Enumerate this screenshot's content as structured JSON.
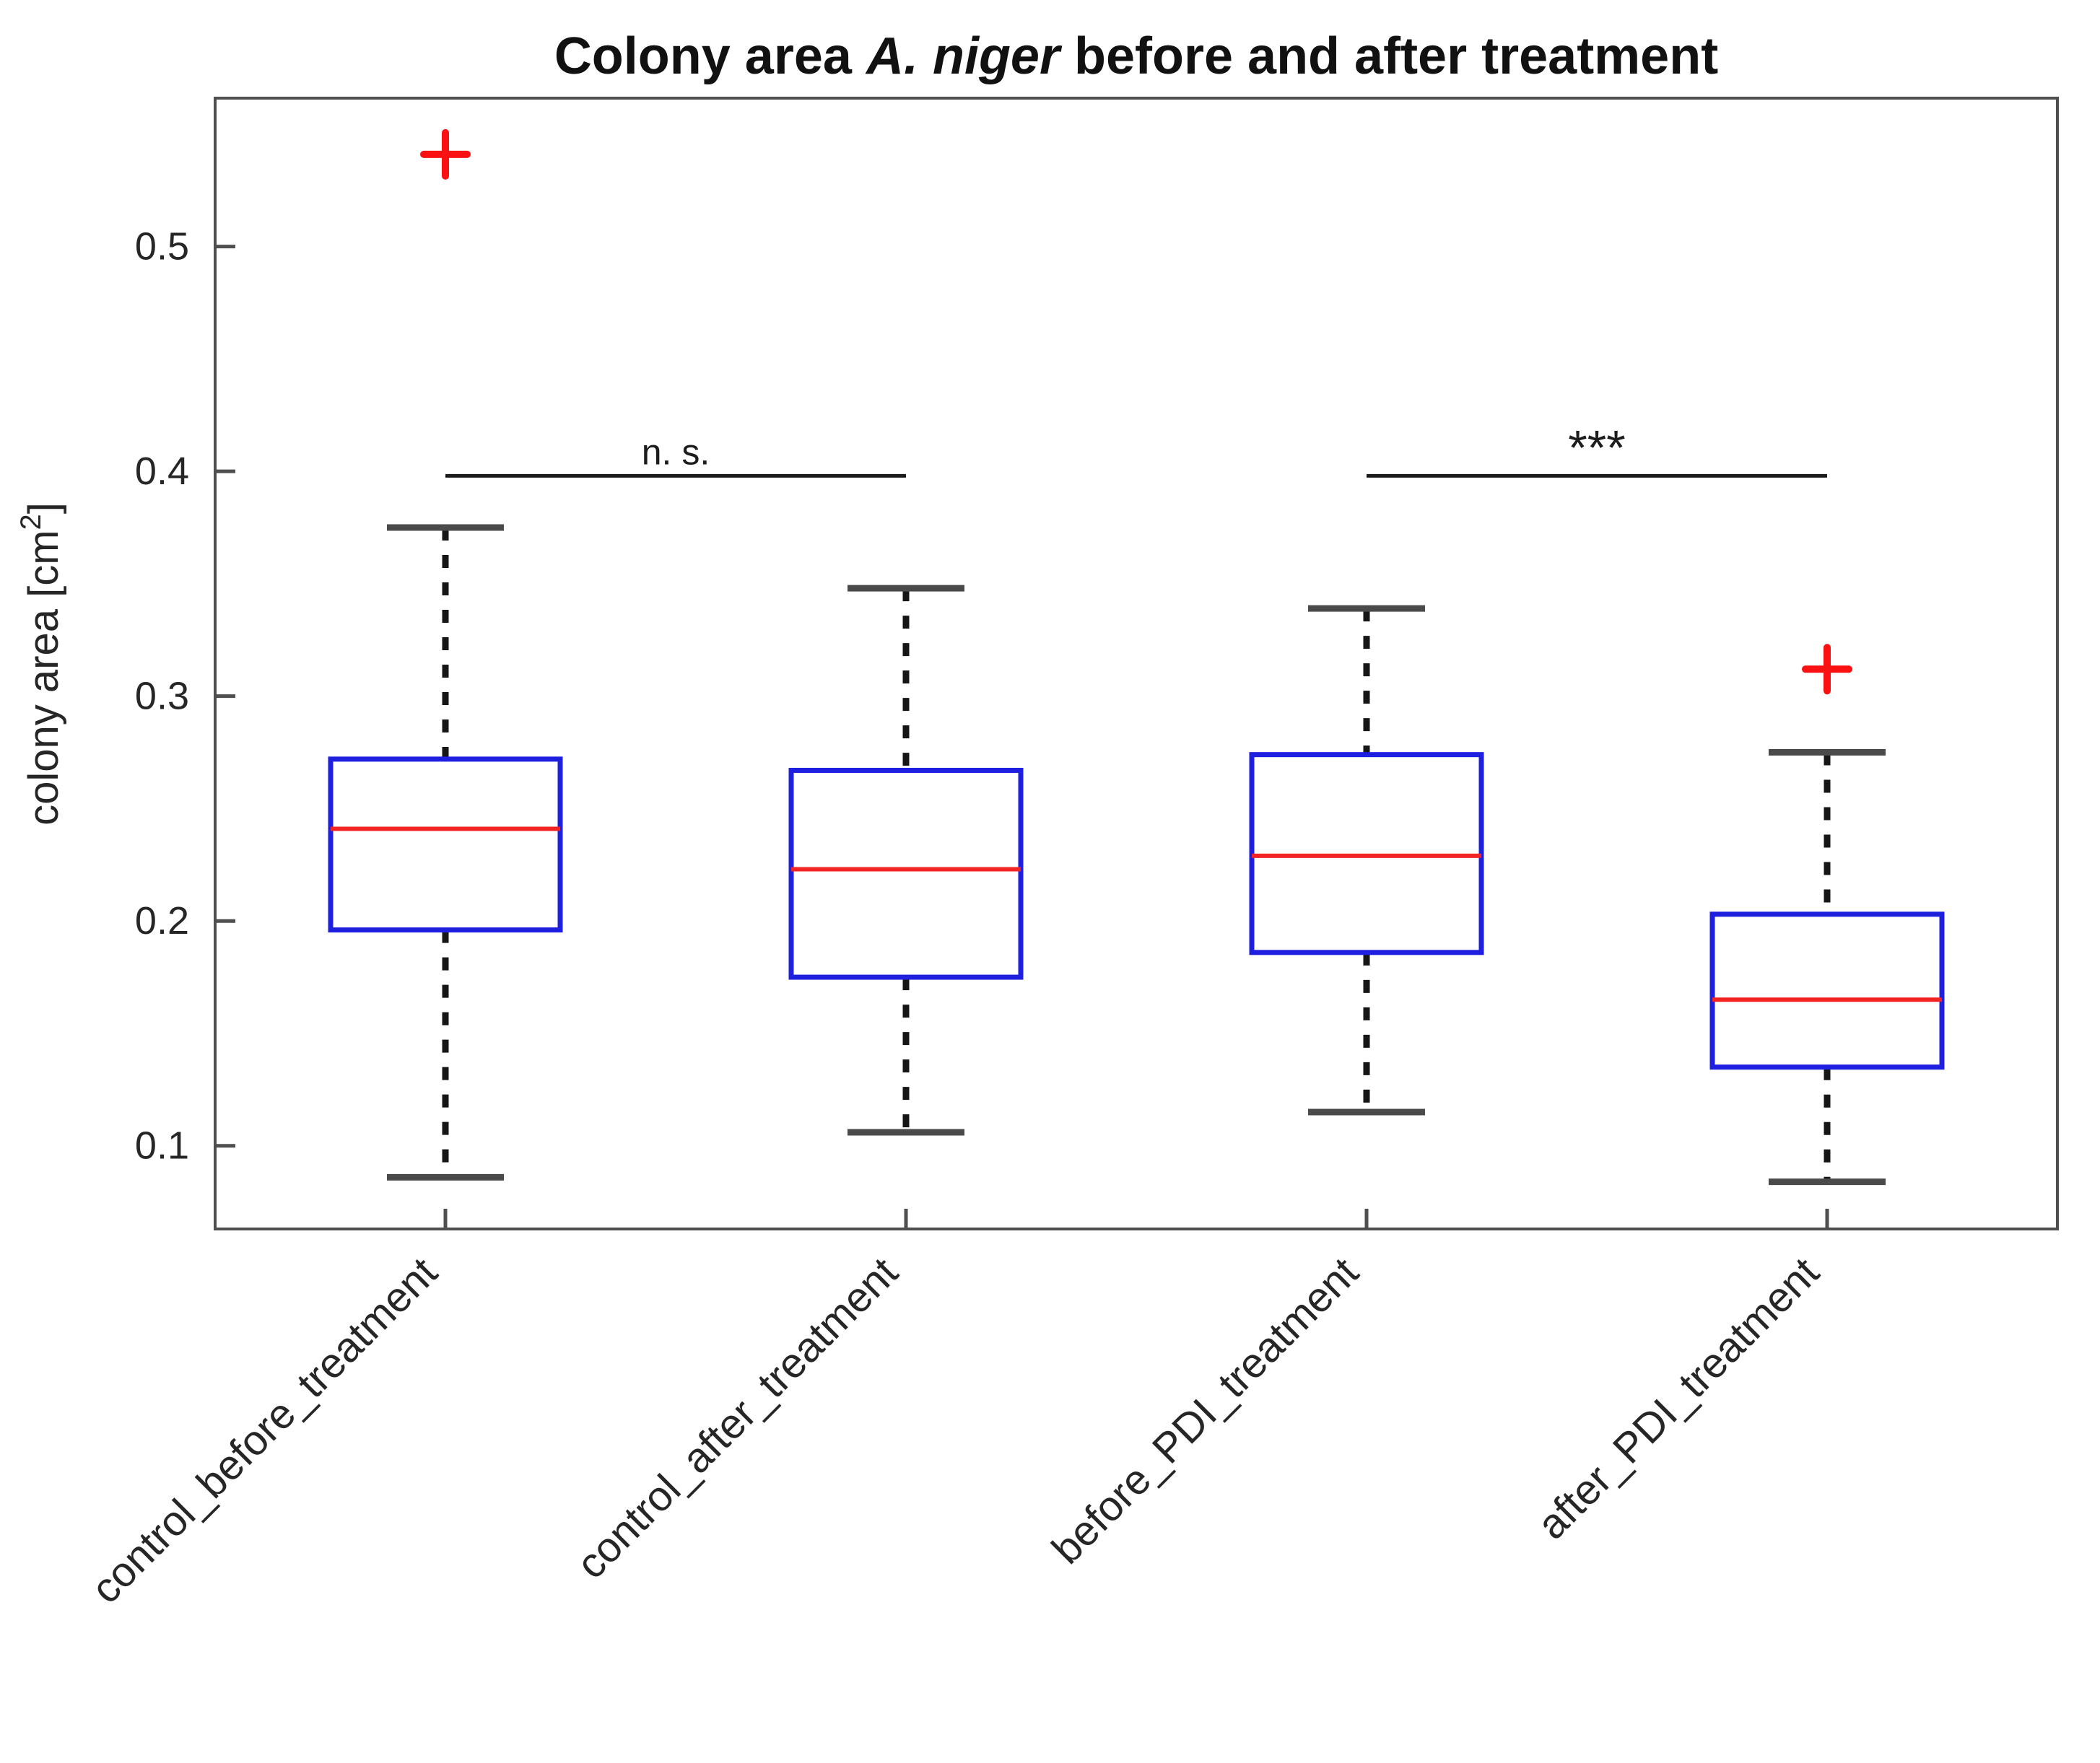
{
  "title": {
    "pre": "Colony area ",
    "species": "A. niger",
    "post": " before and after treatment"
  },
  "y_axis": {
    "label_pre": "colony area [cm",
    "label_sup": "2",
    "label_post": "]"
  },
  "chart_data": {
    "type": "boxplot",
    "title": "Colony area A. niger before and after treatment",
    "ylabel": "colony area [cm²]",
    "xlabel": "",
    "grid": false,
    "legend": false,
    "ylim": [
      0.063,
      0.566
    ],
    "yticks": [
      0.1,
      0.2,
      0.3,
      0.4,
      0.5
    ],
    "categories": [
      "control_before_treatment",
      "control_after_treatment",
      "before_PDI_treatment",
      "after_PDI_treatment"
    ],
    "series": [
      {
        "name": "control_before_treatment",
        "whisker_low": 0.086,
        "q1": 0.196,
        "median": 0.241,
        "q3": 0.272,
        "whisker_high": 0.375,
        "outliers": [
          0.541
        ]
      },
      {
        "name": "control_after_treatment",
        "whisker_low": 0.106,
        "q1": 0.175,
        "median": 0.223,
        "q3": 0.267,
        "whisker_high": 0.348,
        "outliers": []
      },
      {
        "name": "before_PDI_treatment",
        "whisker_low": 0.115,
        "q1": 0.186,
        "median": 0.229,
        "q3": 0.274,
        "whisker_high": 0.339,
        "outliers": []
      },
      {
        "name": "after_PDI_treatment",
        "whisker_low": 0.084,
        "q1": 0.135,
        "median": 0.165,
        "q3": 0.203,
        "whisker_high": 0.275,
        "outliers": [
          0.312
        ]
      }
    ],
    "annotations": [
      {
        "label": "n. s.",
        "between": [
          1,
          2
        ],
        "line_y": 0.398,
        "font_size": 50
      },
      {
        "label": "***",
        "between": [
          3,
          4
        ],
        "line_y": 0.398,
        "font_size": 68
      }
    ],
    "style": {
      "box_color": "#1f1fe0",
      "median_color": "#f22323",
      "outlier_color": "#fb1111",
      "whisker_color": "#161616",
      "cap_color": "#4a4a4a",
      "axis_color": "#4f4f4f",
      "text_color": "#262626",
      "annotation_color": "#1c1c1c",
      "background": "#ffffff"
    }
  }
}
